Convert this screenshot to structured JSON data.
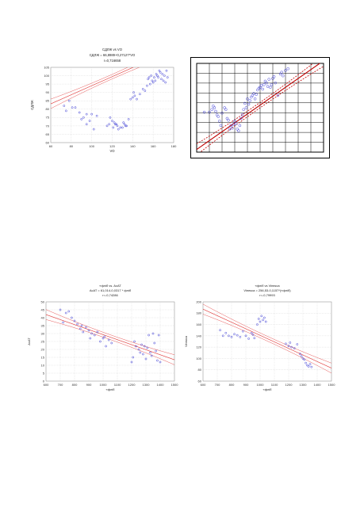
{
  "chart_data": [
    {
      "type": "scatter",
      "title": "СДЛЖ vs VO",
      "subtitle": "СДЛЖ = 66,8989+0,27127*VO",
      "r_text": "r=0,716658",
      "xlabel": "VO",
      "ylabel": "СДЛЖ",
      "xlim": [
        60,
        180
      ],
      "ylim": [
        60,
        105
      ],
      "xticks": [
        "60",
        "80",
        "100",
        "120",
        "140",
        "160",
        "180"
      ],
      "yticks": [
        "60",
        "65",
        "70",
        "75",
        "80",
        "85",
        "90",
        "95",
        "100",
        "105"
      ],
      "regression": {
        "intercept": 66.8989,
        "slope": 0.27127
      },
      "grid": true,
      "points": [
        [
          73,
          82
        ],
        [
          75,
          79
        ],
        [
          78,
          85
        ],
        [
          81,
          81
        ],
        [
          84,
          81
        ],
        [
          88,
          78
        ],
        [
          90,
          74
        ],
        [
          92,
          75
        ],
        [
          95,
          71
        ],
        [
          95,
          77
        ],
        [
          98,
          73
        ],
        [
          100,
          77
        ],
        [
          102,
          68
        ],
        [
          105,
          76
        ],
        [
          115,
          70
        ],
        [
          117,
          71
        ],
        [
          118,
          75
        ],
        [
          120,
          73
        ],
        [
          121,
          69
        ],
        [
          122,
          72
        ],
        [
          123,
          71
        ],
        [
          124,
          71
        ],
        [
          125,
          70
        ],
        [
          126,
          68
        ],
        [
          128,
          69
        ],
        [
          130,
          69
        ],
        [
          131,
          72
        ],
        [
          132,
          71
        ],
        [
          133,
          70
        ],
        [
          134,
          70
        ],
        [
          136,
          74
        ],
        [
          138,
          86
        ],
        [
          140,
          87
        ],
        [
          141,
          90
        ],
        [
          142,
          88
        ],
        [
          144,
          86
        ],
        [
          147,
          89
        ],
        [
          150,
          92
        ],
        [
          152,
          91
        ],
        [
          154,
          94
        ],
        [
          155,
          98
        ],
        [
          156,
          99
        ],
        [
          157,
          95
        ],
        [
          158,
          100
        ],
        [
          159,
          97
        ],
        [
          160,
          96
        ],
        [
          161,
          99
        ],
        [
          162,
          97
        ],
        [
          163,
          101
        ],
        [
          164,
          100
        ],
        [
          165,
          99
        ],
        [
          166,
          103
        ],
        [
          167,
          102
        ],
        [
          168,
          98
        ],
        [
          169,
          101
        ],
        [
          170,
          97
        ],
        [
          171,
          100
        ],
        [
          172,
          96
        ],
        [
          173,
          103
        ],
        [
          174,
          99
        ]
      ]
    },
    {
      "type": "scatter",
      "title": "",
      "xlim": [
        0,
        100
      ],
      "ylim": [
        0,
        100
      ],
      "grid": true,
      "regression": {
        "intercept": 3,
        "slope": 1.0
      },
      "points": [
        [
          6,
          45
        ],
        [
          10,
          45
        ],
        [
          12,
          48
        ],
        [
          13,
          52
        ],
        [
          14,
          50
        ],
        [
          15,
          46
        ],
        [
          16,
          42
        ],
        [
          17,
          40
        ],
        [
          18,
          35
        ],
        [
          19,
          30
        ],
        [
          20,
          44
        ],
        [
          22,
          50
        ],
        [
          23,
          48
        ],
        [
          24,
          38
        ],
        [
          25,
          36
        ],
        [
          26,
          26
        ],
        [
          27,
          30
        ],
        [
          28,
          27
        ],
        [
          29,
          31
        ],
        [
          30,
          35
        ],
        [
          31,
          32
        ],
        [
          32,
          26
        ],
        [
          33,
          24
        ],
        [
          34,
          30
        ],
        [
          35,
          38
        ],
        [
          36,
          42
        ],
        [
          37,
          48
        ],
        [
          38,
          55
        ],
        [
          39,
          50
        ],
        [
          40,
          60
        ],
        [
          41,
          54
        ],
        [
          42,
          58
        ],
        [
          43,
          62
        ],
        [
          44,
          64
        ],
        [
          45,
          66
        ],
        [
          46,
          60
        ],
        [
          47,
          65
        ],
        [
          48,
          70
        ],
        [
          49,
          72
        ],
        [
          50,
          73
        ],
        [
          51,
          75
        ],
        [
          52,
          71
        ],
        [
          53,
          76
        ],
        [
          54,
          80
        ],
        [
          55,
          78
        ],
        [
          56,
          74
        ],
        [
          57,
          82
        ],
        [
          58,
          73
        ],
        [
          59,
          76
        ],
        [
          60,
          83
        ],
        [
          61,
          85
        ],
        [
          62,
          78
        ],
        [
          64,
          64
        ],
        [
          66,
          88
        ],
        [
          67,
          90
        ],
        [
          68,
          86
        ],
        [
          70,
          92
        ],
        [
          72,
          94
        ]
      ]
    },
    {
      "type": "scatter",
      "title": "«фліб vs. AcAT",
      "subtitle": "AcAT = 61,014-0,0317 * фліб",
      "r_text": "r=-0,74286",
      "xlabel": "«фліб",
      "ylabel": "AcAT",
      "xlim": [
        600,
        1500
      ],
      "ylim": [
        0,
        50
      ],
      "xticks": [
        "600",
        "700",
        "800",
        "900",
        "1000",
        "1100",
        "1200",
        "1300",
        "1400",
        "1500"
      ],
      "yticks": [
        "0",
        "5",
        "10",
        "15",
        "20",
        "25",
        "30",
        "35",
        "40",
        "45",
        "50"
      ],
      "regression": {
        "intercept": 61.014,
        "slope": -0.0317
      },
      "grid": true,
      "points": [
        [
          700,
          45
        ],
        [
          720,
          37
        ],
        [
          740,
          43
        ],
        [
          760,
          44
        ],
        [
          780,
          40
        ],
        [
          800,
          38
        ],
        [
          820,
          36
        ],
        [
          840,
          33
        ],
        [
          850,
          35
        ],
        [
          860,
          31
        ],
        [
          880,
          34
        ],
        [
          900,
          32
        ],
        [
          910,
          27
        ],
        [
          920,
          30
        ],
        [
          940,
          29
        ],
        [
          960,
          31
        ],
        [
          980,
          25
        ],
        [
          1000,
          27
        ],
        [
          1010,
          28
        ],
        [
          1020,
          22
        ],
        [
          1040,
          26
        ],
        [
          1060,
          24
        ],
        [
          1200,
          12
        ],
        [
          1210,
          15
        ],
        [
          1220,
          25
        ],
        [
          1230,
          22
        ],
        [
          1250,
          20
        ],
        [
          1260,
          18
        ],
        [
          1270,
          23
        ],
        [
          1280,
          17
        ],
        [
          1290,
          22
        ],
        [
          1300,
          14
        ],
        [
          1310,
          21
        ],
        [
          1320,
          29
        ],
        [
          1330,
          18
        ],
        [
          1340,
          16
        ],
        [
          1350,
          30
        ],
        [
          1360,
          24
        ],
        [
          1370,
          19
        ],
        [
          1380,
          13
        ],
        [
          1390,
          29
        ],
        [
          1400,
          12
        ]
      ]
    },
    {
      "type": "scatter",
      "title": "«фліб vs Viнекса",
      "subtitle": "Viнекса = 256,53-0,1157*(«фліб)",
      "r_text": "r=-0,79993",
      "xlabel": "«фліб",
      "ylabel": "Viнекса",
      "xlim": [
        600,
        1500
      ],
      "ylim": [
        60,
        200
      ],
      "xticks": [
        "600",
        "700",
        "800",
        "900",
        "1000",
        "1100",
        "1200",
        "1300",
        "1400",
        "1500"
      ],
      "yticks": [
        "60",
        "80",
        "100",
        "120",
        "140",
        "160",
        "180",
        "200"
      ],
      "regression": {
        "intercept": 256.53,
        "slope": -0.1157
      },
      "grid": true,
      "points": [
        [
          720,
          150
        ],
        [
          740,
          140
        ],
        [
          760,
          145
        ],
        [
          780,
          140
        ],
        [
          800,
          138
        ],
        [
          820,
          143
        ],
        [
          840,
          141
        ],
        [
          860,
          138
        ],
        [
          880,
          148
        ],
        [
          900,
          140
        ],
        [
          920,
          135
        ],
        [
          940,
          145
        ],
        [
          950,
          142
        ],
        [
          960,
          136
        ],
        [
          980,
          160
        ],
        [
          990,
          170
        ],
        [
          1000,
          165
        ],
        [
          1010,
          175
        ],
        [
          1020,
          168
        ],
        [
          1030,
          172
        ],
        [
          1040,
          165
        ],
        [
          1180,
          126
        ],
        [
          1200,
          122
        ],
        [
          1210,
          128
        ],
        [
          1220,
          120
        ],
        [
          1240,
          118
        ],
        [
          1260,
          125
        ],
        [
          1280,
          108
        ],
        [
          1290,
          104
        ],
        [
          1300,
          100
        ],
        [
          1310,
          98
        ],
        [
          1320,
          92
        ],
        [
          1330,
          88
        ],
        [
          1340,
          86
        ],
        [
          1350,
          90
        ],
        [
          1360,
          85
        ]
      ]
    }
  ]
}
